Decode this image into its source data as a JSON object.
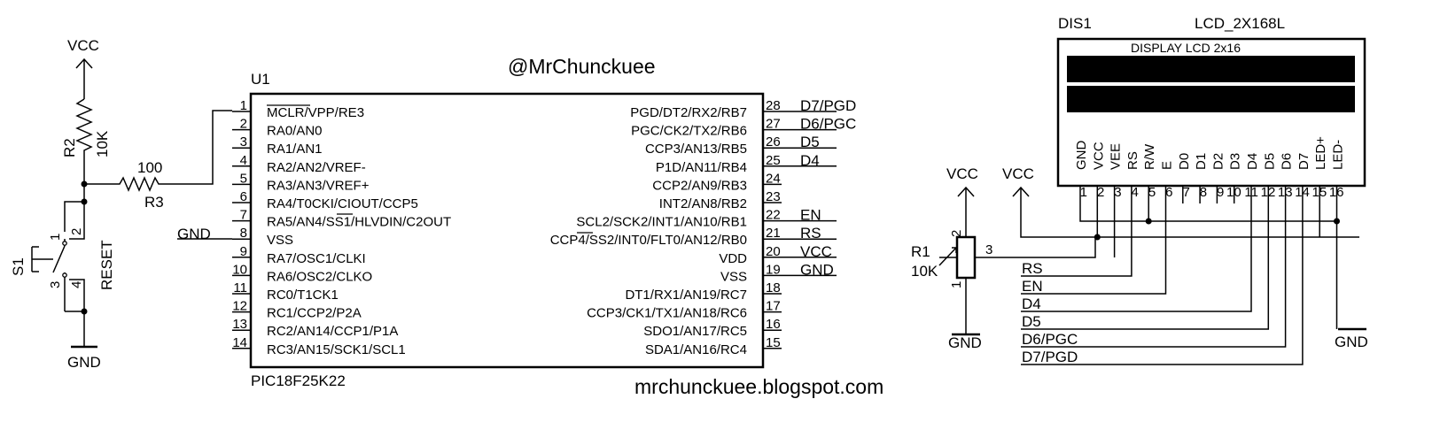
{
  "header": {
    "author": "@MrChunckuee",
    "blog": "mrchunckuee.blogspot.com"
  },
  "mcu": {
    "ref": "U1",
    "part": "PIC18F25K22",
    "left_pins": [
      {
        "num": "1",
        "label": "MCLR/VPP/RE3"
      },
      {
        "num": "2",
        "label": "RA0/AN0"
      },
      {
        "num": "3",
        "label": "RA1/AN1"
      },
      {
        "num": "4",
        "label": "RA2/AN2/VREF-"
      },
      {
        "num": "5",
        "label": "RA3/AN3/VREF+"
      },
      {
        "num": "6",
        "label": "RA4/T0CKI/CIOUT/CCP5"
      },
      {
        "num": "7",
        "label": "RA5/AN4/SS1/HLVDIN/C2OUT"
      },
      {
        "num": "8",
        "label": "VSS"
      },
      {
        "num": "9",
        "label": "RA7/OSC1/CLKI"
      },
      {
        "num": "10",
        "label": "RA6/OSC2/CLKO"
      },
      {
        "num": "11",
        "label": "RC0/T1CK1"
      },
      {
        "num": "12",
        "label": "RC1/CCP2/P2A"
      },
      {
        "num": "13",
        "label": "RC2/AN14/CCP1/P1A"
      },
      {
        "num": "14",
        "label": "RC3/AN15/SCK1/SCL1"
      }
    ],
    "right_pins": [
      {
        "num": "28",
        "label": "PGD/DT2/RX2/RB7",
        "net": "D7/PGD"
      },
      {
        "num": "27",
        "label": "PGC/CK2/TX2/RB6",
        "net": "D6/PGC"
      },
      {
        "num": "26",
        "label": "CCP3/AN13/RB5",
        "net": "D5"
      },
      {
        "num": "25",
        "label": "P1D/AN11/RB4",
        "net": "D4"
      },
      {
        "num": "24",
        "label": "CCP2/AN9/RB3",
        "net": ""
      },
      {
        "num": "23",
        "label": "INT2/AN8/RB2",
        "net": ""
      },
      {
        "num": "22",
        "label": "SCL2/SCK2/INT1/AN10/RB1",
        "net": "EN"
      },
      {
        "num": "21",
        "label": "CCP4/SS2/INT0/FLT0/AN12/RB0",
        "net": "RS"
      },
      {
        "num": "20",
        "label": "VDD",
        "net": "VCC"
      },
      {
        "num": "19",
        "label": "VSS",
        "net": "GND"
      },
      {
        "num": "18",
        "label": "DT1/RX1/AN19/RC7",
        "net": ""
      },
      {
        "num": "17",
        "label": "CCP3/CK1/TX1/AN18/RC6",
        "net": ""
      },
      {
        "num": "16",
        "label": "SDO1/AN17/RC5",
        "net": ""
      },
      {
        "num": "15",
        "label": "SDA1/AN16/RC4",
        "net": ""
      }
    ],
    "left_net_gnd": "GND"
  },
  "reset_circuit": {
    "vcc": "VCC",
    "r2_ref": "R2",
    "r2_value": "10K",
    "r3_ref": "R3",
    "r3_value": "100",
    "switch_ref": "S1",
    "switch_label": "RESET",
    "switch_pins": [
      "1",
      "2",
      "3",
      "4"
    ],
    "gnd": "GND"
  },
  "lcd": {
    "ref": "DIS1",
    "part": "LCD_2X168L",
    "title": "DISPLAY LCD 2x16",
    "pins": [
      {
        "num": "1",
        "label": "GND"
      },
      {
        "num": "2",
        "label": "VCC"
      },
      {
        "num": "3",
        "label": "VEE"
      },
      {
        "num": "4",
        "label": "RS"
      },
      {
        "num": "5",
        "label": "R/W"
      },
      {
        "num": "6",
        "label": "E"
      },
      {
        "num": "7",
        "label": "D0"
      },
      {
        "num": "8",
        "label": "D1"
      },
      {
        "num": "9",
        "label": "D2"
      },
      {
        "num": "10",
        "label": "D3"
      },
      {
        "num": "11",
        "label": "D4"
      },
      {
        "num": "12",
        "label": "D5"
      },
      {
        "num": "13",
        "label": "D6"
      },
      {
        "num": "14",
        "label": "D7"
      },
      {
        "num": "15",
        "label": "LED+"
      },
      {
        "num": "16",
        "label": "LED-"
      }
    ]
  },
  "pot": {
    "ref": "R1",
    "value": "10K",
    "pins": [
      "1",
      "2",
      "3"
    ],
    "vcc1": "VCC",
    "vcc2": "VCC",
    "gnd": "GND"
  },
  "lcd_bus": [
    "RS",
    "EN",
    "D4",
    "D5",
    "D6/PGC",
    "D7/PGD"
  ],
  "lcd_gnd": "GND"
}
